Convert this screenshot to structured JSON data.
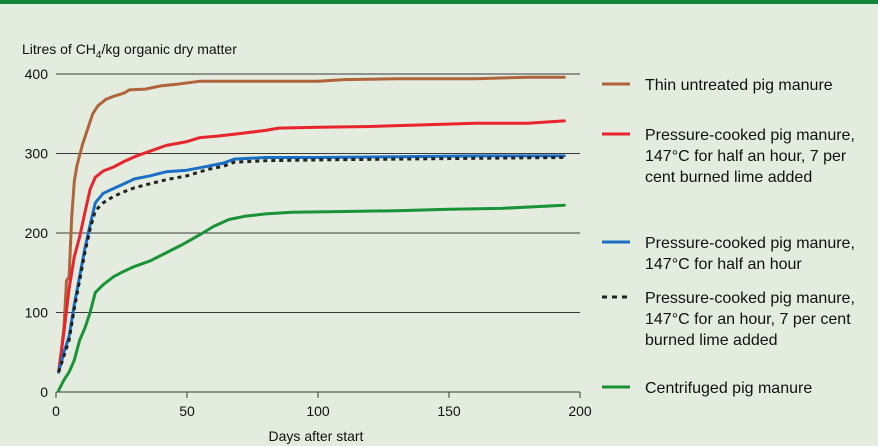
{
  "chart_data": {
    "type": "line",
    "xlabel": "Days after start",
    "ylabel_main": "Litres of CH",
    "ylabel_sub": "4",
    "ylabel_rest": "/kg organic dry matter",
    "xlim": [
      0,
      200
    ],
    "ylim": [
      0,
      400
    ],
    "xticks": [
      "0",
      "50",
      "100",
      "150",
      "200"
    ],
    "yticks": [
      "0",
      "100",
      "200",
      "300",
      "400"
    ],
    "grid": "horizontal",
    "legend": "right",
    "series": [
      {
        "name": "Thin untreated pig manure",
        "legend_lines": [
          "Thin untreated pig manure"
        ],
        "color": "#b0643a",
        "dash": "solid",
        "points": [
          [
            1,
            25
          ],
          [
            2,
            50
          ],
          [
            3,
            80
          ],
          [
            4,
            140
          ],
          [
            5,
            145
          ],
          [
            6,
            220
          ],
          [
            7,
            265
          ],
          [
            8,
            285
          ],
          [
            10,
            310
          ],
          [
            12,
            330
          ],
          [
            14,
            350
          ],
          [
            16,
            360
          ],
          [
            19,
            368
          ],
          [
            22,
            372
          ],
          [
            26,
            376
          ],
          [
            28,
            380
          ],
          [
            34,
            381
          ],
          [
            40,
            385
          ],
          [
            46,
            387
          ],
          [
            55,
            391
          ],
          [
            70,
            391
          ],
          [
            100,
            391
          ],
          [
            110,
            393
          ],
          [
            130,
            394
          ],
          [
            160,
            394
          ],
          [
            180,
            396
          ],
          [
            194,
            396
          ]
        ]
      },
      {
        "name": "Pressure-cooked pig manure, 147°C for half an hour, 7 per cent burned lime added",
        "legend_lines": [
          "Pressure-cooked pig manure,",
          "147°C for half an hour, 7 per",
          "cent burned lime added"
        ],
        "color": "#e8242c",
        "dash": "solid",
        "points": [
          [
            1,
            25
          ],
          [
            3,
            75
          ],
          [
            5,
            130
          ],
          [
            7,
            170
          ],
          [
            9,
            195
          ],
          [
            11,
            225
          ],
          [
            13,
            255
          ],
          [
            15,
            270
          ],
          [
            18,
            278
          ],
          [
            22,
            283
          ],
          [
            26,
            290
          ],
          [
            30,
            296
          ],
          [
            36,
            303
          ],
          [
            42,
            310
          ],
          [
            50,
            315
          ],
          [
            55,
            320
          ],
          [
            62,
            322
          ],
          [
            70,
            325
          ],
          [
            80,
            329
          ],
          [
            85,
            332
          ],
          [
            100,
            333
          ],
          [
            120,
            334
          ],
          [
            140,
            336
          ],
          [
            160,
            338
          ],
          [
            180,
            338
          ],
          [
            194,
            341
          ]
        ]
      },
      {
        "name": "Pressure-cooked pig manure, 147°C for half an hour",
        "legend_lines": [
          "Pressure-cooked pig manure,",
          "147°C for half an hour"
        ],
        "color": "#1a6fc4",
        "dash": "solid",
        "points": [
          [
            1,
            25
          ],
          [
            3,
            50
          ],
          [
            5,
            70
          ],
          [
            7,
            110
          ],
          [
            9,
            145
          ],
          [
            11,
            180
          ],
          [
            13,
            210
          ],
          [
            15,
            238
          ],
          [
            18,
            250
          ],
          [
            22,
            256
          ],
          [
            26,
            262
          ],
          [
            30,
            268
          ],
          [
            36,
            272
          ],
          [
            42,
            277
          ],
          [
            50,
            279
          ],
          [
            58,
            284
          ],
          [
            64,
            288
          ],
          [
            68,
            293
          ],
          [
            80,
            295
          ],
          [
            100,
            295
          ],
          [
            130,
            296
          ],
          [
            160,
            297
          ],
          [
            194,
            297
          ]
        ]
      },
      {
        "name": "Pressure-cooked pig manure, 147°C for an hour, 7 per cent burned lime added",
        "legend_lines": [
          "Pressure-cooked pig manure,",
          "147°C for an hour, 7 per cent",
          "burned lime added"
        ],
        "color": "#222222",
        "dash": "dotted",
        "points": [
          [
            1,
            25
          ],
          [
            3,
            45
          ],
          [
            5,
            65
          ],
          [
            7,
            105
          ],
          [
            9,
            140
          ],
          [
            11,
            175
          ],
          [
            13,
            205
          ],
          [
            15,
            228
          ],
          [
            18,
            238
          ],
          [
            22,
            246
          ],
          [
            26,
            252
          ],
          [
            30,
            257
          ],
          [
            36,
            262
          ],
          [
            42,
            267
          ],
          [
            50,
            272
          ],
          [
            58,
            280
          ],
          [
            64,
            284
          ],
          [
            68,
            289
          ],
          [
            80,
            291
          ],
          [
            100,
            292
          ],
          [
            130,
            293
          ],
          [
            160,
            294
          ],
          [
            194,
            295
          ]
        ]
      },
      {
        "name": "Centrifuged pig manure",
        "legend_lines": [
          "Centrifuged pig manure"
        ],
        "color": "#1a9338",
        "dash": "solid",
        "points": [
          [
            1,
            2
          ],
          [
            3,
            15
          ],
          [
            5,
            25
          ],
          [
            7,
            40
          ],
          [
            9,
            65
          ],
          [
            11,
            80
          ],
          [
            13,
            100
          ],
          [
            15,
            125
          ],
          [
            18,
            135
          ],
          [
            22,
            145
          ],
          [
            26,
            152
          ],
          [
            30,
            158
          ],
          [
            36,
            165
          ],
          [
            42,
            175
          ],
          [
            48,
            185
          ],
          [
            55,
            198
          ],
          [
            60,
            208
          ],
          [
            66,
            217
          ],
          [
            72,
            221
          ],
          [
            80,
            224
          ],
          [
            90,
            226
          ],
          [
            110,
            227
          ],
          [
            130,
            228
          ],
          [
            150,
            230
          ],
          [
            170,
            231
          ],
          [
            194,
            235
          ]
        ]
      }
    ]
  }
}
